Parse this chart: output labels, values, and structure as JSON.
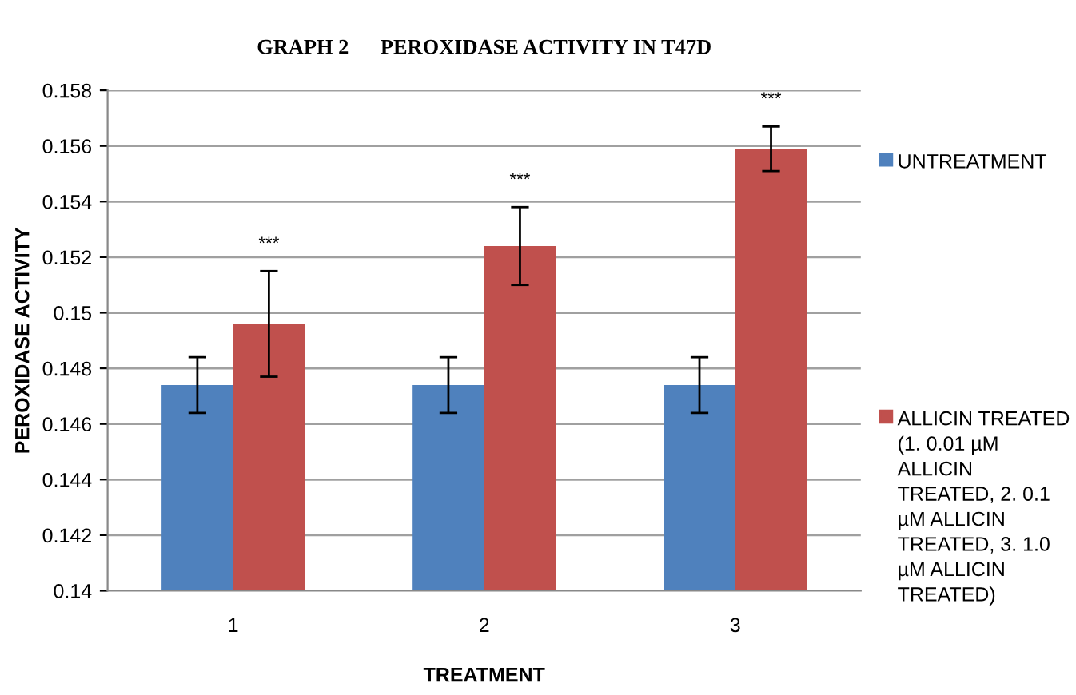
{
  "chart_data": {
    "type": "bar",
    "title": "GRAPH 2      PEROXIDASE ACTIVITY IN T47D",
    "xlabel": "TREATMENT",
    "ylabel": "PEROXIDASE ACTIVITY",
    "categories": [
      "1",
      "2",
      "3"
    ],
    "series": [
      {
        "name": "UNTREATMENT",
        "color": "#4f81bd",
        "values": [
          0.1474,
          0.1474,
          0.1474
        ],
        "errors": [
          0.001,
          0.001,
          0.001
        ]
      },
      {
        "name": "ALLICIN TREATED (1. 0.01 µM ALLICIN TREATED, 2. 0.1 µM ALLICIN TREATED, 3. 1.0 µM ALLICIN TREATED)",
        "color": "#c0504d",
        "values": [
          0.1496,
          0.1524,
          0.1559
        ],
        "errors": [
          0.0019,
          0.0014,
          0.0008
        ]
      }
    ],
    "annotations": [
      "***",
      "***",
      "***"
    ],
    "ylim": [
      0.14,
      0.158
    ],
    "yticks": [
      {
        "value": 0.14,
        "label": "0.14"
      },
      {
        "value": 0.142,
        "label": "0.142"
      },
      {
        "value": 0.144,
        "label": "0.144"
      },
      {
        "value": 0.146,
        "label": "0.146"
      },
      {
        "value": 0.148,
        "label": "0.148"
      },
      {
        "value": 0.15,
        "label": "0.15"
      },
      {
        "value": 0.152,
        "label": "0.152"
      },
      {
        "value": 0.154,
        "label": "0.154"
      },
      {
        "value": 0.156,
        "label": "0.156"
      },
      {
        "value": 0.158,
        "label": "0.158"
      }
    ],
    "grid": "y",
    "legend": "right"
  }
}
